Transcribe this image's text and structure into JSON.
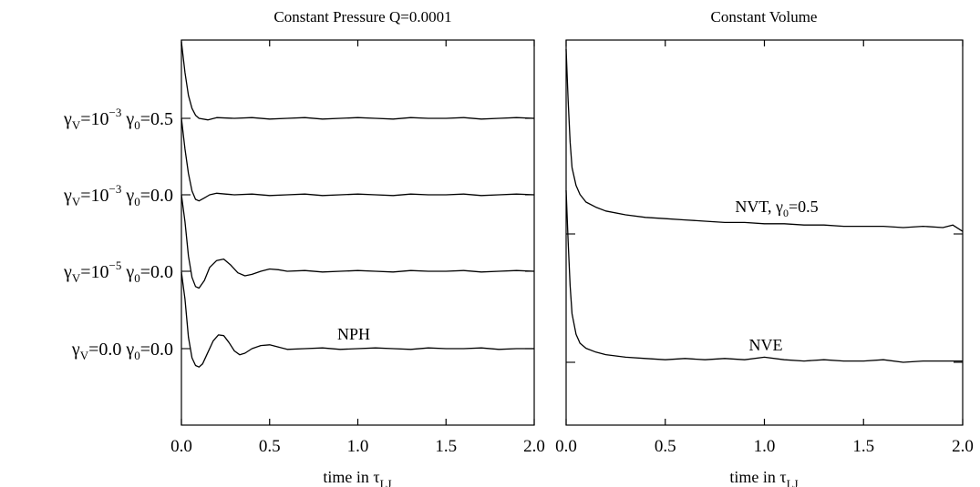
{
  "chart_data": [
    {
      "type": "line",
      "title": "Constant Pressure Q=0.0001",
      "xlabel": "time in τ",
      "xlabel_subscript": "LJ",
      "xlim": [
        0.0,
        2.0
      ],
      "xticks": [
        0.0,
        0.5,
        1.0,
        1.5,
        2.0
      ],
      "xtick_labels": [
        "0.0",
        "0.5",
        "1.0",
        "1.5",
        "2.0"
      ],
      "ylabel_visible": false,
      "grid": false,
      "series": [
        {
          "name": "γV=10^-3 γ0=0.5",
          "label_parts": {
            "g1": "γ",
            "s1": "V",
            "eq1": "=10",
            "e1": "−3",
            "g2": " γ",
            "s2": "0",
            "eq2": "=0.5"
          },
          "t": [
            0,
            0.02,
            0.04,
            0.06,
            0.08,
            0.1,
            0.15,
            0.2,
            0.3,
            0.4,
            0.5,
            0.6,
            0.7,
            0.8,
            0.9,
            1.0,
            1.1,
            1.2,
            1.3,
            1.4,
            1.5,
            1.6,
            1.7,
            1.8,
            1.9,
            2.0
          ],
          "y": [
            1.0,
            0.6,
            0.3,
            0.13,
            0.04,
            0.0,
            -0.02,
            0.01,
            0.0,
            0.01,
            -0.01,
            0.0,
            0.01,
            -0.01,
            0.0,
            0.01,
            0.0,
            -0.01,
            0.01,
            0.0,
            0.0,
            0.01,
            -0.01,
            0.0,
            0.01,
            0.0
          ]
        },
        {
          "name": "γV=10^-3 γ0=0.0",
          "label_parts": {
            "g1": "γ",
            "s1": "V",
            "eq1": "=10",
            "e1": "−3",
            "g2": " γ",
            "s2": "0",
            "eq2": "=0.0"
          },
          "t": [
            0,
            0.02,
            0.04,
            0.06,
            0.08,
            0.1,
            0.13,
            0.16,
            0.2,
            0.25,
            0.3,
            0.4,
            0.5,
            0.6,
            0.7,
            0.8,
            0.9,
            1.0,
            1.1,
            1.2,
            1.3,
            1.4,
            1.5,
            1.6,
            1.7,
            1.8,
            1.9,
            2.0
          ],
          "y": [
            1.0,
            0.6,
            0.28,
            0.05,
            -0.06,
            -0.08,
            -0.04,
            0.0,
            0.02,
            0.01,
            0.0,
            0.01,
            -0.01,
            0.0,
            0.01,
            -0.01,
            0.0,
            0.01,
            0.0,
            -0.01,
            0.01,
            0.0,
            0.0,
            0.01,
            -0.01,
            0.0,
            0.01,
            0.0
          ]
        },
        {
          "name": "γV=10^-5 γ0=0.0",
          "label_parts": {
            "g1": "γ",
            "s1": "V",
            "eq1": "=10",
            "e1": "−5",
            "g2": " γ",
            "s2": "0",
            "eq2": "=0.0"
          },
          "t": [
            0,
            0.02,
            0.04,
            0.06,
            0.08,
            0.1,
            0.13,
            0.16,
            0.2,
            0.24,
            0.28,
            0.32,
            0.36,
            0.4,
            0.45,
            0.5,
            0.55,
            0.6,
            0.7,
            0.8,
            0.9,
            1.0,
            1.1,
            1.2,
            1.3,
            1.4,
            1.5,
            1.6,
            1.7,
            1.8,
            1.9,
            2.0
          ],
          "y": [
            1.0,
            0.65,
            0.2,
            -0.08,
            -0.2,
            -0.22,
            -0.12,
            0.05,
            0.14,
            0.16,
            0.08,
            -0.02,
            -0.06,
            -0.04,
            0.0,
            0.03,
            0.02,
            0.0,
            0.01,
            -0.01,
            0.0,
            0.01,
            0.0,
            -0.01,
            0.01,
            0.0,
            0.0,
            0.01,
            -0.01,
            0.0,
            0.01,
            0.0
          ]
        },
        {
          "name": "γV=0.0 γ0=0.0",
          "label_parts": {
            "g1": "γ",
            "s1": "V",
            "eq1": "=0.0",
            "e1": "",
            "g2": " γ",
            "s2": "0",
            "eq2": "=0.0"
          },
          "t": [
            0,
            0.02,
            0.04,
            0.06,
            0.08,
            0.1,
            0.12,
            0.15,
            0.18,
            0.21,
            0.24,
            0.27,
            0.3,
            0.33,
            0.36,
            0.4,
            0.45,
            0.5,
            0.55,
            0.6,
            0.7,
            0.8,
            0.9,
            1.0,
            1.1,
            1.2,
            1.3,
            1.4,
            1.5,
            1.6,
            1.7,
            1.8,
            1.9,
            2.0
          ],
          "y": [
            1.0,
            0.65,
            0.15,
            -0.12,
            -0.22,
            -0.24,
            -0.2,
            -0.05,
            0.1,
            0.18,
            0.17,
            0.08,
            -0.03,
            -0.08,
            -0.06,
            0.0,
            0.04,
            0.05,
            0.02,
            -0.01,
            0.0,
            0.01,
            -0.01,
            0.0,
            0.01,
            0.0,
            -0.01,
            0.01,
            0.0,
            0.0,
            0.01,
            -0.01,
            0.0,
            0.0
          ]
        }
      ],
      "annotations": [
        {
          "text": "NPH"
        }
      ]
    },
    {
      "type": "line",
      "title": "Constant Volume",
      "xlabel": "time in τ",
      "xlabel_subscript": "LJ",
      "xlim": [
        0.0,
        2.0
      ],
      "xticks": [
        0.0,
        0.5,
        1.0,
        1.5,
        2.0
      ],
      "xtick_labels": [
        "0.0",
        "0.5",
        "1.0",
        "1.5",
        "2.0"
      ],
      "ylabel_visible": false,
      "grid": false,
      "series": [
        {
          "name": "NVT, γ0=0.5",
          "label_parts": {
            "a": "NVT, γ",
            "s": "0",
            "b": "=0.5"
          },
          "t": [
            0,
            0.01,
            0.02,
            0.03,
            0.05,
            0.07,
            0.1,
            0.15,
            0.2,
            0.3,
            0.4,
            0.5,
            0.6,
            0.7,
            0.8,
            0.9,
            1.0,
            1.1,
            1.2,
            1.3,
            1.4,
            1.5,
            1.6,
            1.7,
            1.8,
            1.9,
            1.95,
            2.0
          ],
          "y": [
            1.45,
            1.05,
            0.72,
            0.52,
            0.38,
            0.31,
            0.25,
            0.21,
            0.18,
            0.15,
            0.13,
            0.12,
            0.11,
            0.1,
            0.09,
            0.09,
            0.08,
            0.08,
            0.07,
            0.07,
            0.06,
            0.06,
            0.06,
            0.05,
            0.06,
            0.05,
            0.07,
            0.02
          ]
        },
        {
          "name": "NVE",
          "label_parts": {
            "a": "NVE",
            "s": "",
            "b": ""
          },
          "t": [
            0,
            0.01,
            0.02,
            0.03,
            0.05,
            0.07,
            0.1,
            0.15,
            0.2,
            0.25,
            0.3,
            0.4,
            0.5,
            0.6,
            0.7,
            0.8,
            0.9,
            1.0,
            1.1,
            1.2,
            1.3,
            1.4,
            1.5,
            1.6,
            1.7,
            1.8,
            1.9,
            2.0
          ],
          "y": [
            1.35,
            0.95,
            0.6,
            0.38,
            0.22,
            0.15,
            0.11,
            0.08,
            0.06,
            0.05,
            0.04,
            0.03,
            0.02,
            0.03,
            0.02,
            0.03,
            0.02,
            0.04,
            0.02,
            0.01,
            0.02,
            0.01,
            0.01,
            0.02,
            0.0,
            0.01,
            0.01,
            0.01
          ]
        }
      ]
    }
  ]
}
